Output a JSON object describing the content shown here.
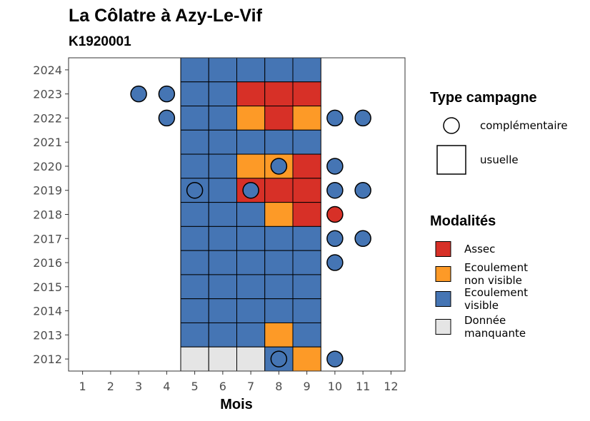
{
  "chart_data": {
    "type": "heatmap",
    "title": "La Côlatre à Azy-Le-Vif",
    "subtitle": "K1920001",
    "xlabel": "Mois",
    "ylabel": "",
    "x_ticks": [
      1,
      2,
      3,
      4,
      5,
      6,
      7,
      8,
      9,
      10,
      11,
      12
    ],
    "y_ticks": [
      2012,
      2013,
      2014,
      2015,
      2016,
      2017,
      2018,
      2019,
      2020,
      2021,
      2022,
      2023,
      2024
    ],
    "xlim": [
      0.5,
      12.5
    ],
    "ylim": [
      2011.5,
      2024.5
    ],
    "colors": {
      "Assec": "#d73027",
      "Ecoulement non visible": "#fd9a27",
      "Ecoulement visible": "#4575b4",
      "Donnée manquante": "#e5e5e5"
    },
    "legend_campagne": {
      "title": "Type campagne",
      "items": [
        {
          "label": "complémentaire",
          "shape": "circle"
        },
        {
          "label": "usuelle",
          "shape": "square"
        }
      ]
    },
    "legend_modalites": {
      "title": "Modalités",
      "items": [
        {
          "label": "Assec",
          "lines": [
            "Assec"
          ]
        },
        {
          "label": "Ecoulement non visible",
          "lines": [
            "Ecoulement",
            "non visible"
          ]
        },
        {
          "label": "Ecoulement visible",
          "lines": [
            "Ecoulement",
            "visible"
          ]
        },
        {
          "label": "Donnée manquante",
          "lines": [
            "Donnée",
            "manquante"
          ]
        }
      ]
    },
    "usuelle": [
      {
        "year": 2024,
        "values": {
          "5": "Ecoulement visible",
          "6": "Ecoulement visible",
          "7": "Ecoulement visible",
          "8": "Ecoulement visible",
          "9": "Ecoulement visible"
        }
      },
      {
        "year": 2023,
        "values": {
          "5": "Ecoulement visible",
          "6": "Ecoulement visible",
          "7": "Assec",
          "8": "Assec",
          "9": "Assec"
        }
      },
      {
        "year": 2022,
        "values": {
          "5": "Ecoulement visible",
          "6": "Ecoulement visible",
          "7": "Ecoulement non visible",
          "8": "Assec",
          "9": "Ecoulement non visible"
        }
      },
      {
        "year": 2021,
        "values": {
          "5": "Ecoulement visible",
          "6": "Ecoulement visible",
          "7": "Ecoulement visible",
          "8": "Ecoulement visible",
          "9": "Ecoulement visible"
        }
      },
      {
        "year": 2020,
        "values": {
          "5": "Ecoulement visible",
          "6": "Ecoulement visible",
          "7": "Ecoulement non visible",
          "8": "Ecoulement non visible",
          "9": "Assec"
        }
      },
      {
        "year": 2019,
        "values": {
          "5": "Ecoulement visible",
          "6": "Ecoulement visible",
          "7": "Assec",
          "8": "Assec",
          "9": "Assec"
        }
      },
      {
        "year": 2018,
        "values": {
          "5": "Ecoulement visible",
          "6": "Ecoulement visible",
          "7": "Ecoulement visible",
          "8": "Ecoulement non visible",
          "9": "Assec"
        }
      },
      {
        "year": 2017,
        "values": {
          "5": "Ecoulement visible",
          "6": "Ecoulement visible",
          "7": "Ecoulement visible",
          "8": "Ecoulement visible",
          "9": "Ecoulement visible"
        }
      },
      {
        "year": 2016,
        "values": {
          "5": "Ecoulement visible",
          "6": "Ecoulement visible",
          "7": "Ecoulement visible",
          "8": "Ecoulement visible",
          "9": "Ecoulement visible"
        }
      },
      {
        "year": 2015,
        "values": {
          "5": "Ecoulement visible",
          "6": "Ecoulement visible",
          "7": "Ecoulement visible",
          "8": "Ecoulement visible",
          "9": "Ecoulement visible"
        }
      },
      {
        "year": 2014,
        "values": {
          "5": "Ecoulement visible",
          "6": "Ecoulement visible",
          "7": "Ecoulement visible",
          "8": "Ecoulement visible",
          "9": "Ecoulement visible"
        }
      },
      {
        "year": 2013,
        "values": {
          "5": "Ecoulement visible",
          "6": "Ecoulement visible",
          "7": "Ecoulement visible",
          "8": "Ecoulement non visible",
          "9": "Ecoulement visible"
        }
      },
      {
        "year": 2012,
        "values": {
          "5": "Donnée manquante",
          "6": "Donnée manquante",
          "7": "Donnée manquante",
          "8": "Ecoulement visible",
          "9": "Ecoulement non visible"
        }
      }
    ],
    "complementaire": [
      {
        "year": 2023,
        "month": 3,
        "value": "Ecoulement visible"
      },
      {
        "year": 2023,
        "month": 4,
        "value": "Ecoulement visible"
      },
      {
        "year": 2022,
        "month": 4,
        "value": "Ecoulement visible"
      },
      {
        "year": 2022,
        "month": 10,
        "value": "Ecoulement visible"
      },
      {
        "year": 2022,
        "month": 11,
        "value": "Ecoulement visible"
      },
      {
        "year": 2020,
        "month": 8,
        "value": "Ecoulement visible"
      },
      {
        "year": 2020,
        "month": 10,
        "value": "Ecoulement visible"
      },
      {
        "year": 2019,
        "month": 5,
        "value": "Ecoulement visible"
      },
      {
        "year": 2019,
        "month": 7,
        "value": "Ecoulement visible"
      },
      {
        "year": 2019,
        "month": 10,
        "value": "Ecoulement visible"
      },
      {
        "year": 2019,
        "month": 11,
        "value": "Ecoulement visible"
      },
      {
        "year": 2018,
        "month": 10,
        "value": "Assec"
      },
      {
        "year": 2017,
        "month": 10,
        "value": "Ecoulement visible"
      },
      {
        "year": 2017,
        "month": 11,
        "value": "Ecoulement visible"
      },
      {
        "year": 2016,
        "month": 10,
        "value": "Ecoulement visible"
      },
      {
        "year": 2012,
        "month": 8,
        "value": "Ecoulement visible"
      },
      {
        "year": 2012,
        "month": 10,
        "value": "Ecoulement visible"
      }
    ]
  }
}
